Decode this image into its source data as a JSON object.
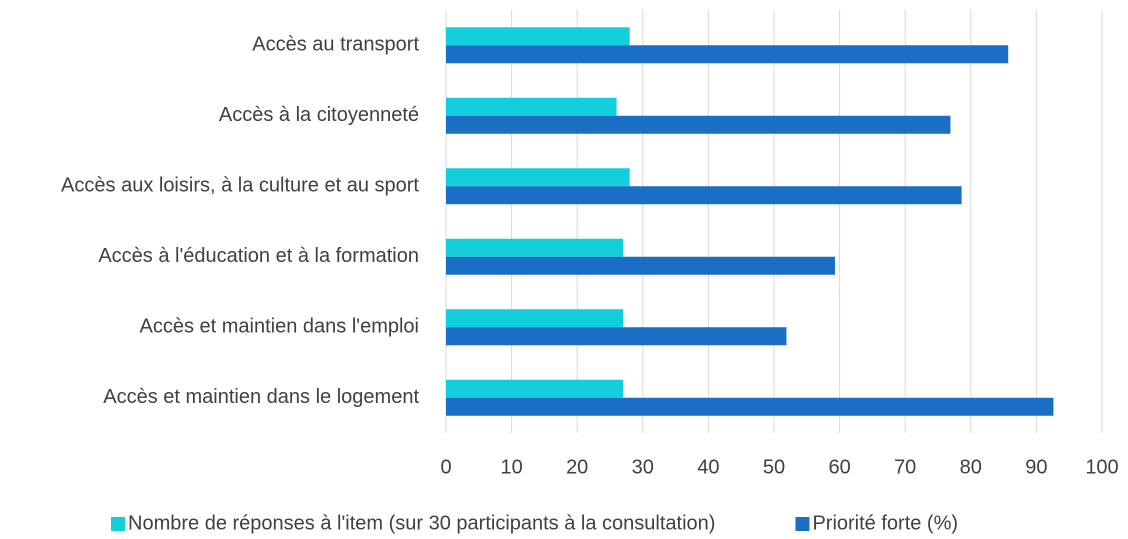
{
  "chart_data": {
    "type": "hbar",
    "categories": [
      "Accès au transport",
      "Accès à la citoyenneté",
      "Accès aux loisirs, à la culture et au sport",
      "Accès à l'éducation et à la formation",
      "Accès et maintien dans l'emploi",
      "Accès et maintien dans le logement"
    ],
    "series": [
      {
        "name": "Nombre de réponses à l'item (sur 30 participants à la consultation)",
        "color": "#12cfdb",
        "values": [
          28,
          26,
          28,
          27,
          27,
          27
        ]
      },
      {
        "name": "Priorité forte (%)",
        "color": "#1a6fc4",
        "values": [
          85.7,
          76.9,
          78.6,
          59.3,
          51.9,
          92.6
        ]
      }
    ],
    "xlim": [
      0,
      100
    ],
    "xticks": [
      0,
      10,
      20,
      30,
      40,
      50,
      60,
      70,
      80,
      90,
      100
    ],
    "grid": true,
    "legend": "bottom"
  }
}
